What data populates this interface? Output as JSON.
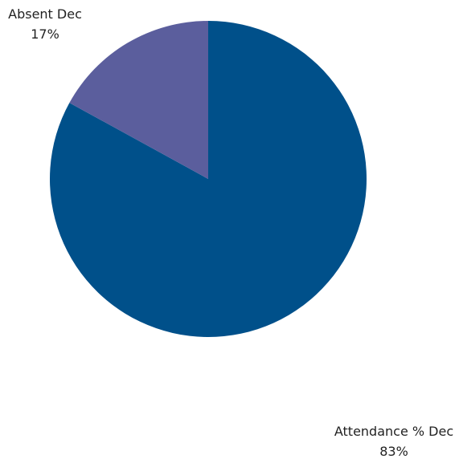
{
  "chart_data": {
    "type": "pie",
    "slices": [
      {
        "label": "Attendance % Dec",
        "value": 83,
        "value_label": "83%",
        "color": "#00508a"
      },
      {
        "label": "Absent Dec",
        "value": 17,
        "value_label": "17%",
        "color": "#5b5e9d"
      }
    ],
    "start_angle": "12 o'clock",
    "direction": "clockwise",
    "legend": "none"
  }
}
